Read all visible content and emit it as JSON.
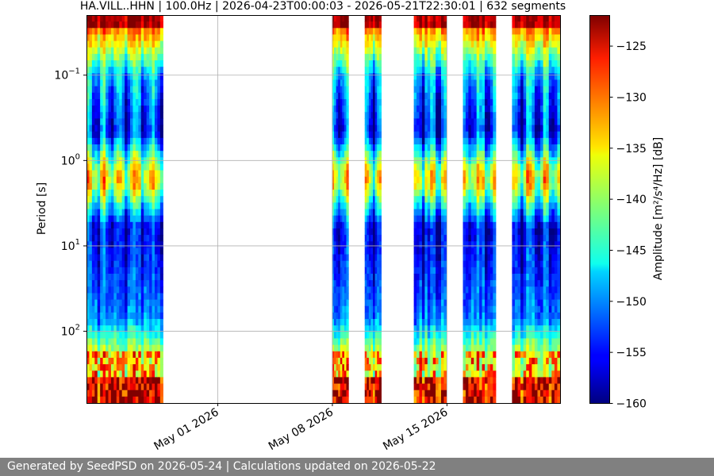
{
  "chart_data": {
    "type": "heatmap",
    "title": "HA.VILL..HHN | 100.0Hz | 2026-04-23T00:00:03 - 2026-05-21T22:30:01 | 632 segments",
    "ylabel": "Period [s]",
    "xlabel": "",
    "y_scale": "log",
    "y_range_s": [
      0.02,
      700
    ],
    "y_ticks": [
      {
        "value": 0.1,
        "base": "10",
        "exp": "−1"
      },
      {
        "value": 1,
        "base": "10",
        "exp": "0"
      },
      {
        "value": 10,
        "base": "10",
        "exp": "1"
      },
      {
        "value": 100,
        "base": "10",
        "exp": "2"
      }
    ],
    "x_range": [
      "2026-04-23",
      "2026-05-21T22:30"
    ],
    "x_ticks": [
      {
        "date": "2026-05-01",
        "label": "May 01 2026"
      },
      {
        "date": "2026-05-08",
        "label": "May 08 2026"
      },
      {
        "date": "2026-05-15",
        "label": "May 15 2026"
      }
    ],
    "data_segments": [
      {
        "start": "2026-04-23T00:00",
        "end": "2026-04-27T16:00"
      },
      {
        "start": "2026-05-08T00:00",
        "end": "2026-05-09T00:00"
      },
      {
        "start": "2026-05-10T00:00",
        "end": "2026-05-11T00:00"
      },
      {
        "start": "2026-05-13T00:00",
        "end": "2026-05-15T00:00"
      },
      {
        "start": "2026-05-16T00:00",
        "end": "2026-05-18T00:00"
      },
      {
        "start": "2026-05-19T00:00",
        "end": "2026-05-21T22:30"
      }
    ],
    "grid": true,
    "colorbar": {
      "label": "Amplitude [m²/s⁴/Hz] [dB]",
      "min": -160,
      "max": -122,
      "ticks": [
        -125,
        -130,
        -135,
        -140,
        -145,
        -150,
        -155,
        -160
      ],
      "colormap": "jet"
    }
  },
  "footer": {
    "text": "Generated by SeedPSD on 2026-05-24 | Calculations updated on 2026-05-22"
  }
}
